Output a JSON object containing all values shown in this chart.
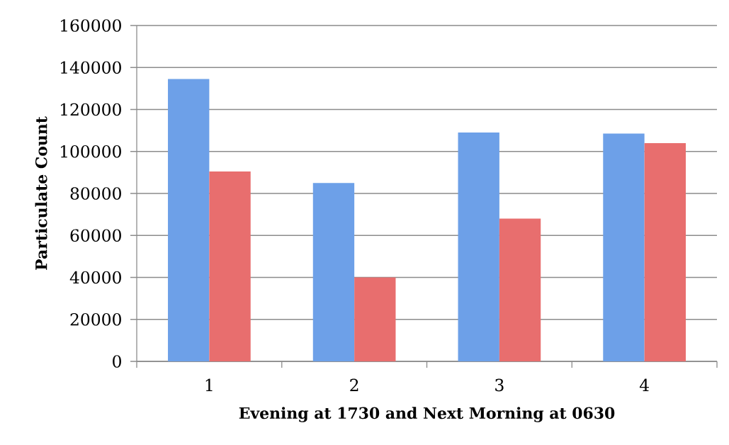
{
  "chart_data": {
    "type": "bar",
    "xlabel": "Evening at 1730 and Next Morning at 0630",
    "ylabel": "Particulate Count",
    "categories": [
      "1",
      "2",
      "3",
      "4"
    ],
    "series": [
      {
        "color": "#6da0e8",
        "values": [
          134500,
          85000,
          109000,
          108500
        ]
      },
      {
        "color": "#e86e6e",
        "values": [
          90500,
          40000,
          68000,
          104000
        ]
      }
    ],
    "ylim": [
      0,
      160000
    ],
    "yticks": [
      0,
      20000,
      40000,
      60000,
      80000,
      100000,
      120000,
      140000,
      160000
    ],
    "grid": "y"
  }
}
